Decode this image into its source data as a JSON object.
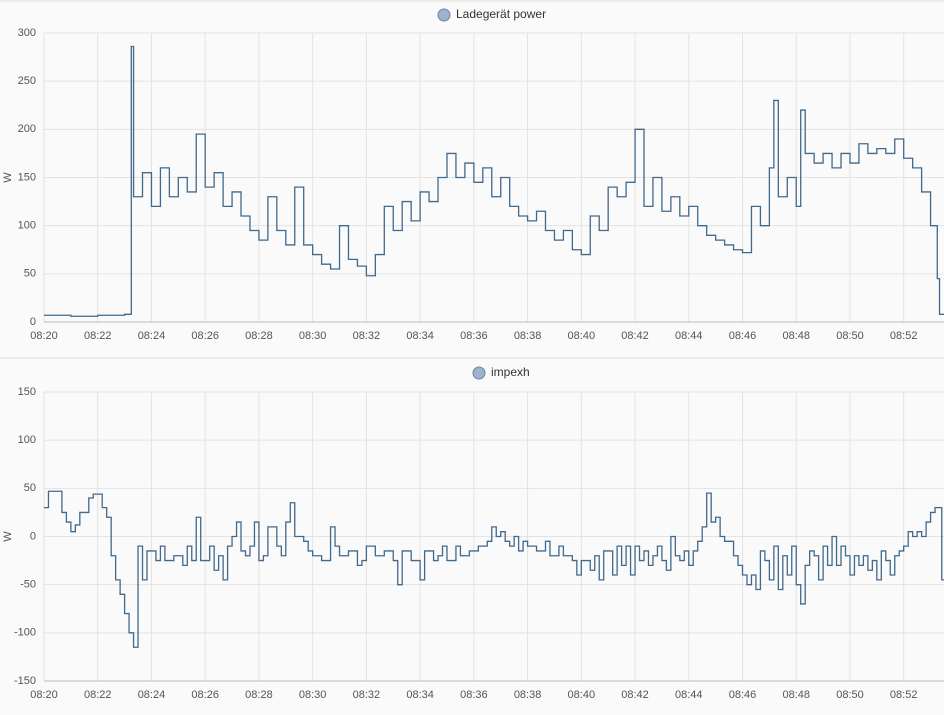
{
  "chart_data": [
    {
      "type": "line",
      "step": true,
      "ylabel": "W",
      "grid": true,
      "xlim": [
        "08:20:00",
        "08:53:30"
      ],
      "xticks": [
        "08:20",
        "08:22",
        "08:24",
        "08:26",
        "08:28",
        "08:30",
        "08:32",
        "08:34",
        "08:36",
        "08:38",
        "08:40",
        "08:42",
        "08:44",
        "08:46",
        "08:48",
        "08:50",
        "08:52"
      ],
      "ylim": [
        0,
        300
      ],
      "yticks": [
        0,
        50,
        100,
        150,
        200,
        250,
        300
      ],
      "x": [
        "08:20:00",
        "08:21:00",
        "08:22:00",
        "08:23:00",
        "08:23:15",
        "08:23:20",
        "08:23:40",
        "08:24:00",
        "08:24:20",
        "08:24:40",
        "08:25:00",
        "08:25:20",
        "08:25:40",
        "08:26:00",
        "08:26:20",
        "08:26:40",
        "08:27:00",
        "08:27:20",
        "08:27:40",
        "08:28:00",
        "08:28:20",
        "08:28:40",
        "08:29:00",
        "08:29:20",
        "08:29:40",
        "08:30:00",
        "08:30:20",
        "08:30:40",
        "08:31:00",
        "08:31:20",
        "08:31:40",
        "08:32:00",
        "08:32:20",
        "08:32:40",
        "08:33:00",
        "08:33:20",
        "08:33:40",
        "08:34:00",
        "08:34:20",
        "08:34:40",
        "08:35:00",
        "08:35:20",
        "08:35:40",
        "08:36:00",
        "08:36:20",
        "08:36:40",
        "08:37:00",
        "08:37:20",
        "08:37:40",
        "08:38:00",
        "08:38:20",
        "08:38:40",
        "08:39:00",
        "08:39:20",
        "08:39:40",
        "08:40:00",
        "08:40:20",
        "08:40:40",
        "08:41:00",
        "08:41:20",
        "08:41:40",
        "08:42:00",
        "08:42:20",
        "08:42:40",
        "08:43:00",
        "08:43:20",
        "08:43:40",
        "08:44:00",
        "08:44:20",
        "08:44:40",
        "08:45:00",
        "08:45:20",
        "08:45:40",
        "08:46:00",
        "08:46:20",
        "08:46:40",
        "08:47:00",
        "08:47:10",
        "08:47:20",
        "08:47:40",
        "08:48:00",
        "08:48:10",
        "08:48:20",
        "08:48:40",
        "08:49:00",
        "08:49:20",
        "08:49:40",
        "08:50:00",
        "08:50:20",
        "08:50:40",
        "08:51:00",
        "08:51:20",
        "08:51:40",
        "08:52:00",
        "08:52:20",
        "08:52:40",
        "08:53:00",
        "08:53:15",
        "08:53:20"
      ],
      "series": [
        {
          "name": "Ladegerät power",
          "color": "#41698c",
          "values": [
            7,
            6,
            7,
            8,
            286,
            130,
            155,
            120,
            160,
            130,
            150,
            135,
            195,
            140,
            155,
            120,
            135,
            110,
            95,
            85,
            130,
            95,
            80,
            140,
            80,
            70,
            60,
            55,
            100,
            65,
            58,
            48,
            70,
            120,
            95,
            125,
            105,
            135,
            125,
            150,
            175,
            150,
            165,
            145,
            160,
            130,
            150,
            120,
            110,
            105,
            115,
            95,
            85,
            95,
            75,
            70,
            110,
            95,
            140,
            130,
            145,
            200,
            120,
            150,
            115,
            130,
            110,
            120,
            100,
            90,
            85,
            80,
            75,
            72,
            120,
            100,
            160,
            230,
            130,
            150,
            120,
            220,
            175,
            165,
            175,
            160,
            175,
            165,
            185,
            175,
            180,
            175,
            190,
            170,
            160,
            135,
            100,
            45,
            8
          ]
        }
      ]
    },
    {
      "type": "line",
      "step": true,
      "ylabel": "W",
      "grid": true,
      "xlim": [
        "08:20:00",
        "08:53:30"
      ],
      "xticks": [
        "08:20",
        "08:22",
        "08:24",
        "08:26",
        "08:28",
        "08:30",
        "08:32",
        "08:34",
        "08:36",
        "08:38",
        "08:40",
        "08:42",
        "08:44",
        "08:46",
        "08:48",
        "08:50",
        "08:52"
      ],
      "ylim": [
        -150,
        150
      ],
      "yticks": [
        -150,
        -100,
        -50,
        0,
        50,
        100,
        150
      ],
      "x": [
        "08:20:00",
        "08:20:10",
        "08:20:40",
        "08:20:50",
        "08:21:00",
        "08:21:10",
        "08:21:20",
        "08:21:40",
        "08:21:50",
        "08:22:10",
        "08:22:20",
        "08:22:30",
        "08:22:40",
        "08:22:50",
        "08:23:00",
        "08:23:10",
        "08:23:20",
        "08:23:30",
        "08:23:40",
        "08:23:50",
        "08:24:10",
        "08:24:20",
        "08:24:30",
        "08:24:50",
        "08:25:10",
        "08:25:20",
        "08:25:30",
        "08:25:40",
        "08:25:50",
        "08:26:10",
        "08:26:20",
        "08:26:30",
        "08:26:40",
        "08:26:50",
        "08:27:00",
        "08:27:10",
        "08:27:20",
        "08:27:30",
        "08:27:40",
        "08:27:50",
        "08:28:00",
        "08:28:10",
        "08:28:20",
        "08:28:40",
        "08:28:50",
        "08:29:00",
        "08:29:10",
        "08:29:20",
        "08:29:40",
        "08:29:50",
        "08:30:00",
        "08:30:20",
        "08:30:40",
        "08:30:50",
        "08:31:00",
        "08:31:20",
        "08:31:40",
        "08:31:50",
        "08:32:00",
        "08:32:20",
        "08:32:40",
        "08:33:00",
        "08:33:10",
        "08:33:20",
        "08:33:40",
        "08:34:00",
        "08:34:10",
        "08:34:30",
        "08:34:40",
        "08:34:50",
        "08:35:00",
        "08:35:20",
        "08:35:30",
        "08:35:50",
        "08:36:10",
        "08:36:30",
        "08:36:40",
        "08:36:50",
        "08:37:00",
        "08:37:10",
        "08:37:20",
        "08:37:30",
        "08:37:40",
        "08:37:50",
        "08:38:00",
        "08:38:20",
        "08:38:40",
        "08:38:50",
        "08:39:10",
        "08:39:20",
        "08:39:40",
        "08:39:50",
        "08:40:00",
        "08:40:20",
        "08:40:30",
        "08:40:40",
        "08:40:50",
        "08:41:10",
        "08:41:20",
        "08:41:30",
        "08:41:40",
        "08:41:50",
        "08:42:00",
        "08:42:10",
        "08:42:20",
        "08:42:30",
        "08:42:40",
        "08:42:50",
        "08:43:00",
        "08:43:10",
        "08:43:20",
        "08:43:30",
        "08:43:40",
        "08:43:50",
        "08:44:00",
        "08:44:10",
        "08:44:20",
        "08:44:30",
        "08:44:40",
        "08:44:50",
        "08:45:00",
        "08:45:10",
        "08:45:20",
        "08:45:40",
        "08:45:50",
        "08:46:00",
        "08:46:10",
        "08:46:20",
        "08:46:30",
        "08:46:40",
        "08:46:50",
        "08:47:00",
        "08:47:10",
        "08:47:20",
        "08:47:30",
        "08:47:40",
        "08:47:50",
        "08:48:00",
        "08:48:10",
        "08:48:20",
        "08:48:30",
        "08:48:40",
        "08:48:50",
        "08:49:00",
        "08:49:10",
        "08:49:20",
        "08:49:30",
        "08:49:40",
        "08:49:50",
        "08:50:00",
        "08:50:10",
        "08:50:20",
        "08:50:30",
        "08:50:40",
        "08:50:50",
        "08:51:00",
        "08:51:10",
        "08:51:20",
        "08:51:30",
        "08:51:40",
        "08:51:50",
        "08:52:00",
        "08:52:10",
        "08:52:20",
        "08:52:30",
        "08:52:40",
        "08:52:50",
        "08:53:00",
        "08:53:10",
        "08:53:25"
      ],
      "series": [
        {
          "name": "impexh",
          "color": "#41698c",
          "values": [
            30,
            47,
            25,
            15,
            5,
            12,
            25,
            40,
            44,
            30,
            20,
            -20,
            -45,
            -60,
            -80,
            -100,
            -115,
            -10,
            -45,
            -15,
            -25,
            -10,
            -25,
            -20,
            -30,
            -10,
            -25,
            20,
            -25,
            -10,
            -35,
            -20,
            -45,
            -10,
            0,
            15,
            -15,
            -20,
            -10,
            15,
            -25,
            -20,
            10,
            -10,
            -20,
            15,
            35,
            0,
            -5,
            -15,
            -20,
            -25,
            10,
            -10,
            -20,
            -15,
            -30,
            -25,
            -10,
            -20,
            -15,
            -25,
            -50,
            -15,
            -25,
            -45,
            -15,
            -25,
            -20,
            -10,
            -25,
            -10,
            -20,
            -15,
            -10,
            -5,
            10,
            0,
            5,
            -5,
            -10,
            0,
            -15,
            -5,
            -10,
            -15,
            -5,
            -20,
            -10,
            -20,
            -25,
            -40,
            -25,
            -35,
            -20,
            -45,
            -15,
            -40,
            -10,
            -30,
            -10,
            -40,
            -10,
            -25,
            -15,
            -30,
            -20,
            -10,
            -25,
            -35,
            0,
            -20,
            -25,
            -15,
            -30,
            -15,
            -5,
            10,
            45,
            15,
            20,
            0,
            -5,
            -20,
            -30,
            -40,
            -50,
            -40,
            -55,
            -15,
            -25,
            -45,
            -10,
            -55,
            -20,
            -40,
            -10,
            -50,
            -70,
            -30,
            -15,
            -20,
            -45,
            -10,
            -30,
            0,
            -30,
            -10,
            -20,
            -40,
            -20,
            -30,
            -20,
            -35,
            -25,
            -45,
            -15,
            -25,
            -40,
            -20,
            -15,
            -10,
            5,
            0,
            5,
            0,
            15,
            25,
            30,
            -45
          ]
        }
      ]
    }
  ]
}
